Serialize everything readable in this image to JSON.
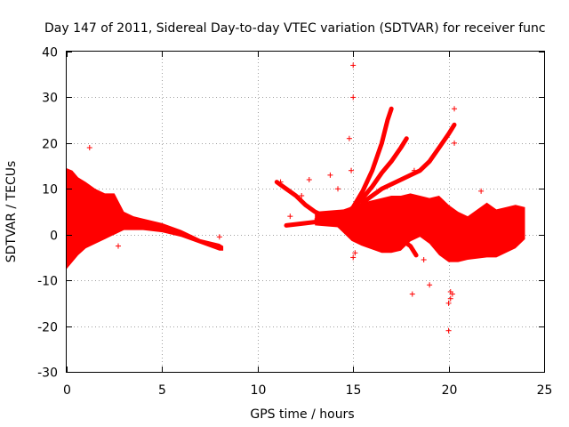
{
  "chart_data": {
    "type": "scatter",
    "title": "Day 147 of 2011, Sidereal Day-to-day VTEC variation (SDTVAR) for receiver func",
    "xlabel": "GPS time / hours",
    "ylabel": "SDTVAR / TECUs",
    "xlim": [
      0,
      25
    ],
    "ylim": [
      -30,
      40
    ],
    "xticks": [
      0,
      5,
      10,
      15,
      20,
      25
    ],
    "yticks": [
      -30,
      -20,
      -10,
      0,
      10,
      20,
      30,
      40
    ],
    "xtick_labels": [
      "0",
      "5",
      "10",
      "15",
      "20",
      "25"
    ],
    "ytick_labels": [
      "-30",
      "-20",
      "-10",
      "0",
      "10",
      "20",
      "30",
      "40"
    ],
    "grid": true,
    "marker": "+",
    "color": "#ff0000",
    "series": [
      {
        "name": "dense-band-early",
        "kind": "band",
        "x": [
          0.0,
          0.3,
          0.6,
          1.0,
          1.5,
          2.0,
          2.5,
          3.0,
          3.5,
          4.0,
          5.0,
          6.0,
          7.0,
          8.0,
          8.2
        ],
        "upper": [
          14.5,
          14.0,
          12.5,
          11.5,
          10.0,
          9.0,
          9.0,
          5.0,
          4.0,
          3.5,
          2.5,
          1.0,
          -1.0,
          -2.0,
          -2.5
        ],
        "lower": [
          -7.5,
          -6.0,
          -4.5,
          -3.0,
          -2.0,
          -1.0,
          0.0,
          1.0,
          1.0,
          1.0,
          0.5,
          -0.5,
          -2.0,
          -3.5,
          -3.5
        ]
      },
      {
        "name": "dense-band-late",
        "kind": "band",
        "x": [
          13.0,
          14.5,
          15.5,
          16.5,
          17.0,
          17.5,
          18.0,
          18.5,
          19.0,
          19.5,
          20.0,
          20.5,
          21.0,
          22.0,
          22.5,
          23.0,
          23.5,
          24.0
        ],
        "upper": [
          5.0,
          5.5,
          7.0,
          8.0,
          8.5,
          8.5,
          9.0,
          8.5,
          8.0,
          8.5,
          6.5,
          5.0,
          4.0,
          7.0,
          5.5,
          6.0,
          6.5,
          6.0
        ],
        "lower": [
          2.0,
          1.5,
          -2.5,
          -4.0,
          -4.0,
          -3.5,
          -1.5,
          -0.5,
          -2.0,
          -4.5,
          -6.0,
          -6.0,
          -5.5,
          -5.0,
          -5.0,
          -4.0,
          -3.0,
          -1.0
        ]
      },
      {
        "name": "decay-arc-1",
        "kind": "trace",
        "x": [
          11.0,
          11.5,
          12.0,
          12.5,
          13.0,
          13.5,
          14.0
        ],
        "y": [
          11.5,
          10.0,
          8.5,
          6.5,
          5.0,
          4.0,
          3.5
        ]
      },
      {
        "name": "rising-arc-1",
        "kind": "trace",
        "x": [
          11.5,
          12.5,
          13.5,
          14.5,
          15.5,
          16.5,
          17.5,
          18.5,
          19.5,
          20.5,
          21.5
        ],
        "y": [
          2.0,
          2.5,
          3.0,
          3.5,
          4.5,
          5.5,
          6.0,
          5.0,
          3.0,
          0.0,
          -3.0
        ]
      },
      {
        "name": "rising-arc-2",
        "kind": "trace",
        "x": [
          14.5,
          15.0,
          15.5,
          16.0,
          16.5,
          16.8,
          17.0
        ],
        "y": [
          4.0,
          6.0,
          9.5,
          14.0,
          20.0,
          25.0,
          27.5
        ]
      },
      {
        "name": "rising-arc-3",
        "kind": "trace",
        "x": [
          14.8,
          15.5,
          16.0,
          16.5,
          17.0,
          17.5,
          17.8
        ],
        "y": [
          5.0,
          8.0,
          10.5,
          13.5,
          16.0,
          19.0,
          21.0
        ]
      },
      {
        "name": "rising-arc-4",
        "kind": "trace",
        "x": [
          15.5,
          16.5,
          17.5,
          18.0,
          18.5,
          19.0,
          19.5,
          20.0,
          20.3
        ],
        "y": [
          7.0,
          10.0,
          12.0,
          13.0,
          14.0,
          16.0,
          19.0,
          22.0,
          24.0
        ]
      },
      {
        "name": "falling-arc-1",
        "kind": "trace",
        "x": [
          14.0,
          14.5,
          15.0,
          15.5,
          16.0,
          16.5
        ],
        "y": [
          3.0,
          1.0,
          -1.0,
          -2.0,
          -1.5,
          1.5
        ]
      },
      {
        "name": "falling-arc-2",
        "kind": "trace",
        "x": [
          17.0,
          17.5,
          18.0,
          18.3
        ],
        "y": [
          2.0,
          -1.0,
          -2.5,
          -4.5
        ]
      },
      {
        "name": "outliers",
        "kind": "points",
        "x": [
          1.2,
          2.7,
          8.0,
          11.2,
          11.7,
          12.3,
          12.7,
          13.0,
          13.8,
          14.2,
          14.5,
          14.8,
          14.9,
          15.0,
          15.0,
          15.0,
          15.1,
          16.0,
          16.5,
          18.1,
          18.2,
          18.7,
          19.0,
          20.0,
          20.0,
          20.1,
          20.1,
          20.2,
          20.3,
          20.3,
          21.7
        ],
        "y": [
          19.0,
          -2.5,
          -0.5,
          11.5,
          4.0,
          8.5,
          12.0,
          3.0,
          13.0,
          10.0,
          2.0,
          21.0,
          14.0,
          37.0,
          30.0,
          -5.0,
          -4.0,
          -2.0,
          -3.0,
          -13.0,
          14.0,
          -5.5,
          -11.0,
          -21.0,
          -15.0,
          -14.0,
          -12.5,
          -13.0,
          27.5,
          20.0,
          9.5
        ]
      }
    ]
  }
}
